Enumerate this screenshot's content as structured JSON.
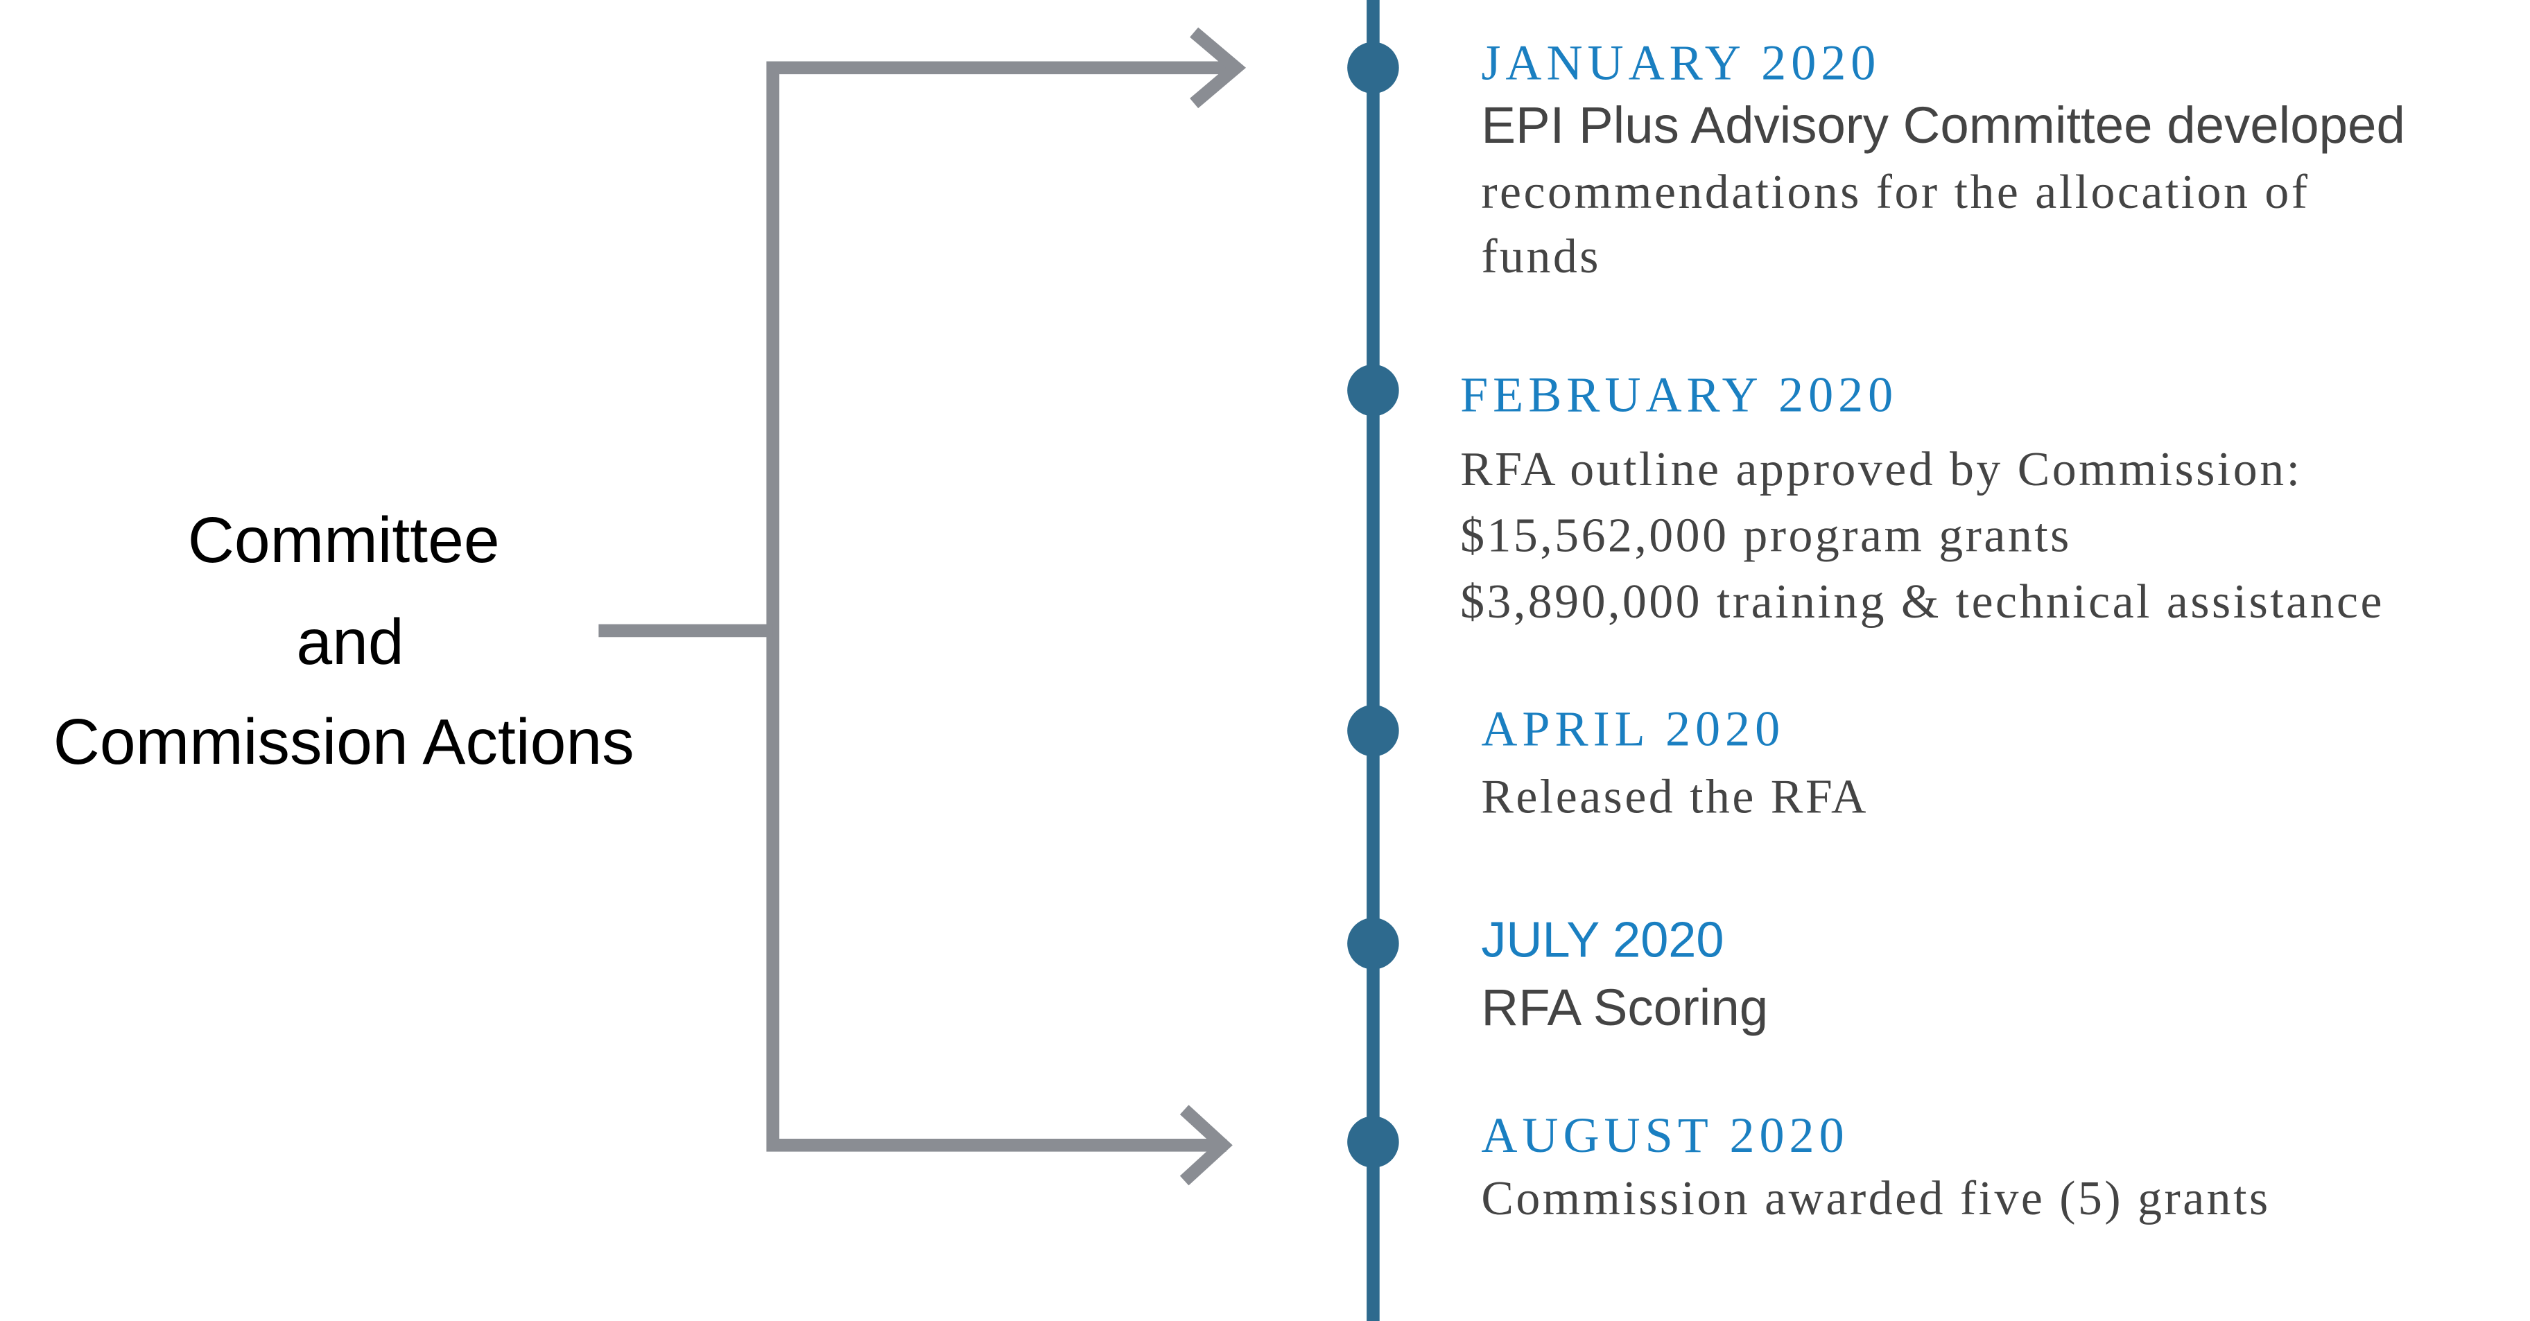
{
  "label": {
    "lines": [
      "Committee",
      "and",
      "Commission Actions"
    ]
  },
  "events": [
    {
      "date": "JANUARY 2020",
      "lines": [
        "EPI Plus Advisory Committee developed",
        "recommendations for the allocation of",
        "funds"
      ]
    },
    {
      "date": "FEBRUARY 2020",
      "lines": [
        "RFA outline approved by Commission:",
        "$15,562,000 program grants",
        "$3,890,000 training & technical assistance"
      ]
    },
    {
      "date": "APRIL 2020",
      "lines": [
        "Released the RFA"
      ]
    },
    {
      "date": "JULY 2020",
      "lines": [
        "RFA Scoring"
      ]
    },
    {
      "date": "AUGUST 2020",
      "lines": [
        "Commission awarded five (5) grants"
      ]
    }
  ]
}
